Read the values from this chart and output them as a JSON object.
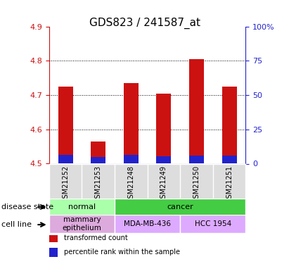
{
  "title": "GDS823 / 241587_at",
  "samples": [
    "GSM21252",
    "GSM21253",
    "GSM21248",
    "GSM21249",
    "GSM21250",
    "GSM21251"
  ],
  "transformed_counts": [
    4.725,
    4.565,
    4.735,
    4.705,
    4.805,
    4.725
  ],
  "percentile_ranks": [
    4.525,
    4.52,
    4.525,
    4.522,
    4.524,
    4.523
  ],
  "base": 4.5,
  "ylim_left": [
    4.5,
    4.9
  ],
  "ylim_right": [
    0,
    100
  ],
  "yticks_left": [
    4.5,
    4.6,
    4.7,
    4.8,
    4.9
  ],
  "yticks_right": [
    0,
    25,
    50,
    75,
    100
  ],
  "ytick_labels_right": [
    "0",
    "25",
    "50",
    "75",
    "100%"
  ],
  "bar_color_red": "#cc1111",
  "bar_color_blue": "#2222cc",
  "disease_state_groups": [
    {
      "label": "normal",
      "start": 0,
      "end": 2,
      "color": "#aaffaa"
    },
    {
      "label": "cancer",
      "start": 2,
      "end": 6,
      "color": "#44cc44"
    }
  ],
  "cell_line_groups": [
    {
      "label": "mammary\nepithelium",
      "start": 0,
      "end": 2,
      "color": "#ddaadd"
    },
    {
      "label": "MDA-MB-436",
      "start": 2,
      "end": 4,
      "color": "#ddaaff"
    },
    {
      "label": "HCC 1954",
      "start": 4,
      "end": 6,
      "color": "#ddaaff"
    }
  ],
  "legend_items": [
    {
      "label": "transformed count",
      "color": "#cc1111"
    },
    {
      "label": "percentile rank within the sample",
      "color": "#2222cc"
    }
  ],
  "left_label": "disease state",
  "left_label2": "cell line",
  "bg_color": "#ffffff",
  "ax_bg_color": "#ffffff",
  "grid_yticks": [
    4.6,
    4.7,
    4.8
  ],
  "sample_bg_color": "#dddddd"
}
